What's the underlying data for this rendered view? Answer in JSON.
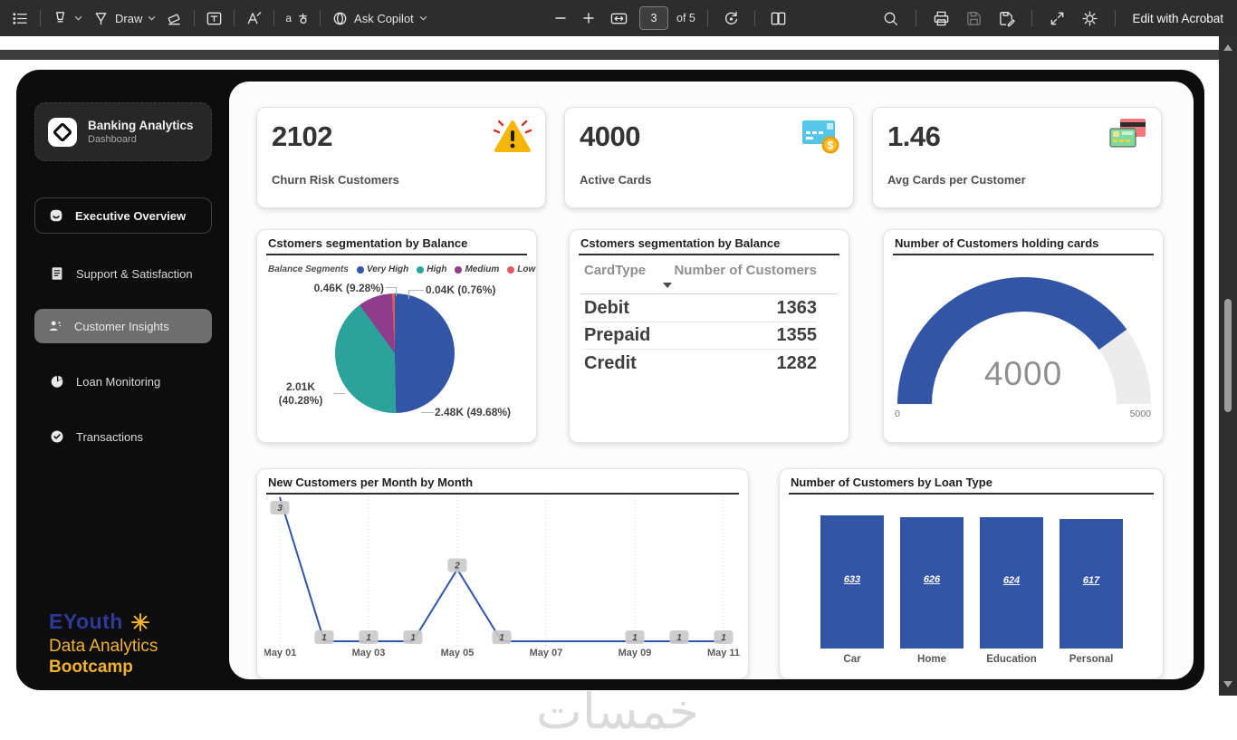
{
  "viewer_toolbar": {
    "draw_label": "Draw",
    "copilot_label": "Ask Copilot",
    "page_number": "3",
    "page_count_label": "of 5",
    "edit_button_label": "Edit with Acrobat",
    "icons": [
      "outline-menu-icon",
      "highlighter-icon",
      "draw-pen-icon",
      "eraser-icon",
      "text-box-icon",
      "add-text-icon",
      "read-language-icon",
      "copilot-icon",
      "zoom-out-icon",
      "zoom-in-icon",
      "fit-width-icon",
      "rotate-icon",
      "page-view-icon",
      "search-icon",
      "print-icon",
      "save-icon",
      "save-as-icon",
      "fullscreen-icon",
      "settings-icon"
    ]
  },
  "sidebar": {
    "logo": {
      "title": "Banking Analytics",
      "subtitle": "Dashboard"
    },
    "items": [
      {
        "label": "Executive  Overview",
        "icon": "overview-icon",
        "active": false
      },
      {
        "label": "Support & Satisfaction",
        "icon": "support-icon",
        "active": false
      },
      {
        "label": "Customer Insights",
        "icon": "customers-icon",
        "active": true
      },
      {
        "label": "Loan Monitoring",
        "icon": "loan-pie-icon",
        "active": false
      },
      {
        "label": "Transactions",
        "icon": "transactions-check-icon",
        "active": false
      }
    ],
    "footer_brand": {
      "name": "EYouth",
      "line2": "Data Analytics",
      "line3": "Bootcamp"
    }
  },
  "kpis": [
    {
      "value": "2102",
      "label": "Churn Risk Customers",
      "icon": "warning-icon"
    },
    {
      "value": "4000",
      "label": "Active Cards",
      "icon": "card-dollar-icon"
    },
    {
      "value": "1.46",
      "label": "Avg Cards per Customer",
      "icon": "two-cards-icon"
    }
  ],
  "watermark": "خمسات",
  "colors": {
    "accent_blue": "#3355A6",
    "teal": "#2BA39A",
    "purple": "#8E3C8B",
    "red": "#E05C5C",
    "gold": "#F2B32C",
    "brand_blue": "#2E3A99",
    "gauge_track": "#ECECEC"
  },
  "chart_data": [
    {
      "type": "pie",
      "title": "Cstomers segmentation by Balance",
      "legend_title": "Balance Segments",
      "legend_position": "top",
      "slices": [
        {
          "label": "Very High",
          "display": "2.48K (49.68%)",
          "value_k": 2.48,
          "pct": 49.68,
          "color": "#3355A6"
        },
        {
          "label": "High",
          "display": "2.01K (40.28%)",
          "value_k": 2.01,
          "pct": 40.28,
          "color": "#2BA39A"
        },
        {
          "label": "Medium",
          "display": "0.46K (9.28%)",
          "value_k": 0.46,
          "pct": 9.28,
          "color": "#8E3C8B"
        },
        {
          "label": "Low",
          "display": "0.04K (0.76%)",
          "value_k": 0.04,
          "pct": 0.76,
          "color": "#E05C5C"
        }
      ]
    },
    {
      "type": "table",
      "title": "Cstomers segmentation by Balance",
      "columns": [
        "CardType",
        "Number of Customers"
      ],
      "rows": [
        [
          "Debit",
          "1363"
        ],
        [
          "Prepaid",
          "1355"
        ],
        [
          "Credit",
          "1282"
        ]
      ],
      "sorted_column": "Number of Customers",
      "sort_direction": "desc"
    },
    {
      "type": "gauge",
      "title": "Number of Customers holding cards",
      "value": 4000,
      "min": 0,
      "max": 5000,
      "value_display": "4000",
      "min_label": "0",
      "max_label": "5000",
      "color": "#3355A6",
      "track_color": "#ECECEC"
    },
    {
      "type": "line",
      "title": "New Customers per Month by Month",
      "x": [
        "May 01",
        "May 02",
        "May 03",
        "May 04",
        "May 05",
        "May 06",
        "May 07",
        "May 08",
        "May 09",
        "May 10",
        "May 11"
      ],
      "values": [
        3,
        1,
        1,
        1,
        2,
        1,
        1,
        1,
        1,
        1,
        1
      ],
      "labeled_point_indices": [
        0,
        1,
        2,
        3,
        4,
        5,
        8,
        9,
        10
      ],
      "x_tick_indices": [
        0,
        2,
        4,
        6,
        8,
        10
      ],
      "ylim": [
        1,
        3
      ],
      "grid": "vertical-dotted",
      "line_color": "#2F55A8"
    },
    {
      "type": "bar",
      "title": "Number of Customers by Loan Type",
      "categories": [
        "Car",
        "Home",
        "Education",
        "Personal"
      ],
      "values": [
        633,
        626,
        624,
        617
      ],
      "bar_color": "#3355A6",
      "ylim": [
        0,
        680
      ]
    }
  ]
}
